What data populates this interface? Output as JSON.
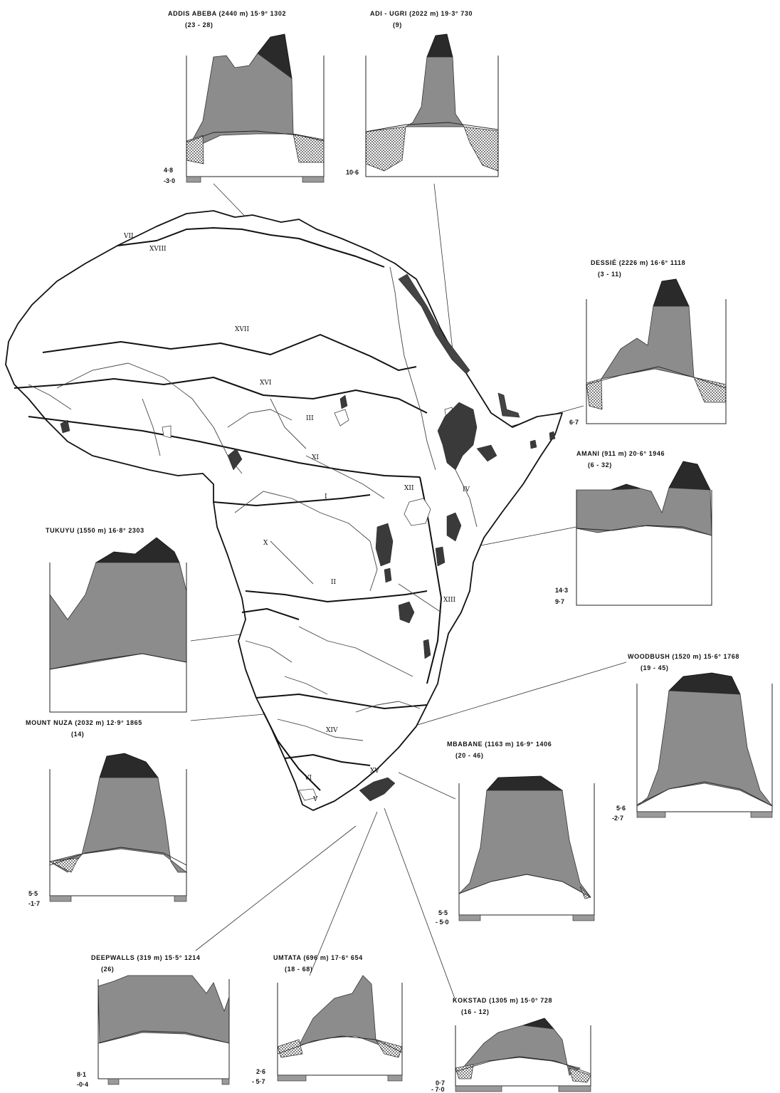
{
  "regions": [
    {
      "id": "r-XVIII",
      "label": "XVIII"
    },
    {
      "id": "r-VII",
      "label": "VII"
    },
    {
      "id": "r-XVII",
      "label": "XVII"
    },
    {
      "id": "r-XVI",
      "label": "XVI"
    },
    {
      "id": "r-III",
      "label": "III"
    },
    {
      "id": "r-XI",
      "label": "XI"
    },
    {
      "id": "r-I",
      "label": "I"
    },
    {
      "id": "r-XII",
      "label": "XII"
    },
    {
      "id": "r-IV",
      "label": "IV"
    },
    {
      "id": "r-X",
      "label": "X"
    },
    {
      "id": "r-II",
      "label": "II"
    },
    {
      "id": "r-XIII",
      "label": "XIII"
    },
    {
      "id": "r-XIV",
      "label": "XIV"
    },
    {
      "id": "r-XV",
      "label": "XV"
    },
    {
      "id": "r-VI",
      "label": "VI"
    },
    {
      "id": "r-V",
      "label": "V"
    }
  ],
  "stations": [
    {
      "id": "addis",
      "title": "ADDIS ABEBA (2440 m) 15·9° 1302",
      "years": "(23 - 28)",
      "vals": [
        "4·8",
        "-3·0"
      ]
    },
    {
      "id": "adiugri",
      "title": "ADI - UGRI (2022 m) 19·3° 730",
      "years": "(9)",
      "vals": [
        "10·6"
      ]
    },
    {
      "id": "dessie",
      "title": "DESSIÉ (2226 m) 16·6° 1118",
      "years": "(3 - 11)",
      "vals": [
        "6·7"
      ]
    },
    {
      "id": "amani",
      "title": "AMANI (911 m) 20·6° 1946",
      "years": "(6 - 32)",
      "vals": [
        "14·3",
        "9·7"
      ]
    },
    {
      "id": "tukuyu",
      "title": "TUKUYU (1550 m) 16·8° 2303",
      "years": "",
      "vals": []
    },
    {
      "id": "woodbush",
      "title": "WOODBUSH (1520 m) 15·6° 1768",
      "years": "(19 - 45)",
      "vals": [
        "5·6",
        "-2·7"
      ]
    },
    {
      "id": "nuza",
      "title": "MOUNT NUZA (2032 m) 12·9° 1865",
      "years": "(14)",
      "vals": [
        "5·5",
        "-1·7"
      ]
    },
    {
      "id": "mbabane",
      "title": "MBABANE (1163 m) 16·9° 1406",
      "years": "(20 - 46)",
      "vals": [
        "5·5",
        "- 5·0"
      ]
    },
    {
      "id": "deepwalls",
      "title": "DEEPWALLS (319 m) 15·5° 1214",
      "years": "(26)",
      "vals": [
        "8·1",
        "-0·4"
      ]
    },
    {
      "id": "umtata",
      "title": "UMTATA (696 m) 17·6° 654",
      "years": "(18 - 68)",
      "vals": [
        "2·6",
        "- 5·7"
      ]
    },
    {
      "id": "kokstad",
      "title": "KOKSTAD (1305 m) 15·0° 728",
      "years": "(16 - 12)",
      "vals": [
        "0·7",
        "- 7·0"
      ]
    }
  ]
}
